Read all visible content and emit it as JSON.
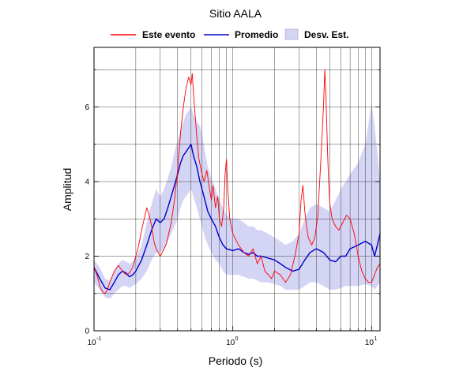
{
  "chart_data": {
    "type": "line",
    "title": "Sitio AALA",
    "xlabel": "Periodo (s)",
    "ylabel": "Amplitud",
    "x_scale": "log",
    "xlim": [
      0.1,
      11.5
    ],
    "ylim": [
      0,
      7.6
    ],
    "x_ticks": [
      {
        "value": 0.1,
        "base": "10",
        "exp": "-1"
      },
      {
        "value": 1,
        "base": "10",
        "exp": "0"
      },
      {
        "value": 10,
        "base": "10",
        "exp": "1"
      }
    ],
    "y_ticks": [
      {
        "value": 0,
        "label": "0"
      },
      {
        "value": 2,
        "label": "2"
      },
      {
        "value": 4,
        "label": "4"
      },
      {
        "value": 6,
        "label": "6"
      }
    ],
    "grid": true,
    "legend_position": "top",
    "colors": {
      "event": "#ff0000",
      "mean": "#0000cc",
      "band": "#d4d4f5"
    },
    "series": [
      {
        "name": "Este evento",
        "color": "#ff0000",
        "x": [
          0.1,
          0.105,
          0.11,
          0.115,
          0.12,
          0.125,
          0.13,
          0.14,
          0.15,
          0.16,
          0.17,
          0.18,
          0.19,
          0.2,
          0.21,
          0.22,
          0.23,
          0.24,
          0.25,
          0.26,
          0.27,
          0.28,
          0.29,
          0.3,
          0.31,
          0.32,
          0.33,
          0.34,
          0.36,
          0.38,
          0.4,
          0.42,
          0.44,
          0.46,
          0.48,
          0.5,
          0.51,
          0.52,
          0.53,
          0.55,
          0.57,
          0.6,
          0.62,
          0.65,
          0.68,
          0.7,
          0.72,
          0.75,
          0.78,
          0.8,
          0.83,
          0.86,
          0.88,
          0.9,
          0.92,
          0.95,
          1.0,
          1.1,
          1.2,
          1.3,
          1.4,
          1.5,
          1.6,
          1.7,
          1.8,
          1.9,
          2.0,
          2.2,
          2.4,
          2.6,
          2.8,
          3.0,
          3.1,
          3.2,
          3.3,
          3.4,
          3.5,
          3.7,
          3.9,
          4.1,
          4.3,
          4.5,
          4.6,
          4.7,
          4.8,
          4.9,
          5.0,
          5.2,
          5.5,
          5.8,
          6.2,
          6.6,
          7.0,
          7.5,
          8.0,
          8.5,
          9.0,
          9.5,
          10.0,
          10.5,
          11.0,
          11.5
        ],
        "values": [
          1.7,
          1.5,
          1.2,
          1.05,
          1.0,
          1.1,
          1.3,
          1.6,
          1.75,
          1.6,
          1.5,
          1.55,
          1.7,
          2.0,
          2.3,
          2.7,
          3.0,
          3.3,
          3.1,
          2.8,
          2.4,
          2.2,
          2.1,
          2.0,
          2.1,
          2.2,
          2.3,
          2.5,
          2.9,
          3.5,
          4.3,
          5.3,
          6.0,
          6.5,
          6.8,
          6.6,
          6.9,
          6.4,
          6.0,
          5.2,
          4.6,
          4.2,
          4.0,
          4.3,
          3.8,
          3.5,
          3.9,
          3.3,
          3.6,
          3.0,
          2.8,
          3.3,
          4.2,
          4.6,
          3.8,
          3.0,
          2.6,
          2.3,
          2.1,
          2.0,
          2.2,
          1.8,
          2.0,
          1.6,
          1.5,
          1.4,
          1.6,
          1.5,
          1.3,
          1.5,
          2.0,
          2.6,
          3.5,
          3.9,
          3.2,
          2.8,
          2.5,
          2.3,
          2.5,
          3.1,
          4.5,
          6.0,
          7.0,
          6.2,
          5.0,
          4.0,
          3.4,
          3.0,
          2.8,
          2.7,
          2.9,
          3.1,
          3.0,
          2.6,
          2.0,
          1.6,
          1.4,
          1.3,
          1.3,
          1.5,
          1.7,
          1.8
        ]
      },
      {
        "name": "Promedio",
        "color": "#0000cc",
        "x": [
          0.1,
          0.11,
          0.12,
          0.13,
          0.14,
          0.15,
          0.16,
          0.17,
          0.18,
          0.19,
          0.2,
          0.22,
          0.24,
          0.26,
          0.28,
          0.3,
          0.32,
          0.34,
          0.36,
          0.38,
          0.4,
          0.42,
          0.44,
          0.46,
          0.48,
          0.5,
          0.52,
          0.55,
          0.58,
          0.6,
          0.63,
          0.66,
          0.7,
          0.75,
          0.8,
          0.85,
          0.9,
          1.0,
          1.1,
          1.2,
          1.3,
          1.4,
          1.5,
          1.6,
          1.8,
          2.0,
          2.2,
          2.4,
          2.7,
          3.0,
          3.3,
          3.6,
          4.0,
          4.5,
          5.0,
          5.5,
          6.0,
          6.5,
          7.0,
          8.0,
          9.0,
          10.0,
          10.5,
          11.0,
          11.5
        ],
        "values": [
          1.7,
          1.4,
          1.15,
          1.1,
          1.3,
          1.5,
          1.6,
          1.55,
          1.45,
          1.5,
          1.6,
          1.9,
          2.3,
          2.7,
          3.0,
          2.9,
          3.0,
          3.3,
          3.6,
          3.9,
          4.2,
          4.5,
          4.7,
          4.8,
          4.9,
          5.0,
          4.7,
          4.4,
          4.0,
          3.8,
          3.5,
          3.2,
          3.0,
          2.8,
          2.5,
          2.3,
          2.2,
          2.15,
          2.2,
          2.1,
          2.05,
          2.1,
          2.0,
          2.0,
          1.95,
          1.9,
          1.8,
          1.7,
          1.6,
          1.65,
          1.9,
          2.1,
          2.2,
          2.1,
          1.9,
          1.85,
          2.0,
          2.0,
          2.2,
          2.3,
          2.4,
          2.3,
          2.0,
          2.3,
          2.6
        ]
      },
      {
        "name": "Desv. Est.",
        "color": "#d4d4f5",
        "x": [
          0.1,
          0.11,
          0.12,
          0.13,
          0.14,
          0.15,
          0.16,
          0.17,
          0.18,
          0.19,
          0.2,
          0.22,
          0.24,
          0.26,
          0.28,
          0.3,
          0.32,
          0.34,
          0.36,
          0.38,
          0.4,
          0.42,
          0.44,
          0.46,
          0.48,
          0.5,
          0.52,
          0.55,
          0.58,
          0.6,
          0.63,
          0.66,
          0.7,
          0.75,
          0.8,
          0.85,
          0.9,
          1.0,
          1.1,
          1.2,
          1.3,
          1.4,
          1.5,
          1.6,
          1.8,
          2.0,
          2.2,
          2.4,
          2.7,
          3.0,
          3.3,
          3.6,
          4.0,
          4.5,
          5.0,
          5.5,
          6.0,
          6.5,
          7.0,
          8.0,
          9.0,
          10.0,
          10.5,
          11.0,
          11.5
        ],
        "upper": [
          1.9,
          1.7,
          1.4,
          1.35,
          1.6,
          1.8,
          1.9,
          1.85,
          1.8,
          1.85,
          1.95,
          2.3,
          2.9,
          3.4,
          3.8,
          3.6,
          3.8,
          4.1,
          4.4,
          4.8,
          5.1,
          5.4,
          5.6,
          5.8,
          5.9,
          6.0,
          5.8,
          5.6,
          5.5,
          5.3,
          4.8,
          4.4,
          4.1,
          3.8,
          3.5,
          3.3,
          3.1,
          3.0,
          3.0,
          2.9,
          2.8,
          2.8,
          2.7,
          2.7,
          2.6,
          2.5,
          2.4,
          2.3,
          2.4,
          2.6,
          3.0,
          3.3,
          3.4,
          3.3,
          3.2,
          3.5,
          3.8,
          4.0,
          4.2,
          4.5,
          5.0,
          6.1,
          5.5,
          4.8,
          4.0
        ],
        "lower": [
          1.3,
          1.1,
          0.9,
          0.85,
          1.0,
          1.1,
          1.2,
          1.2,
          1.15,
          1.2,
          1.25,
          1.4,
          1.6,
          1.9,
          2.1,
          2.1,
          2.2,
          2.4,
          2.6,
          2.8,
          3.0,
          3.3,
          3.5,
          3.6,
          3.7,
          3.8,
          3.6,
          3.3,
          3.0,
          2.8,
          2.5,
          2.3,
          2.1,
          1.9,
          1.8,
          1.6,
          1.5,
          1.5,
          1.5,
          1.45,
          1.4,
          1.4,
          1.35,
          1.3,
          1.3,
          1.25,
          1.2,
          1.1,
          1.1,
          1.1,
          1.2,
          1.3,
          1.3,
          1.2,
          1.1,
          1.1,
          1.15,
          1.2,
          1.2,
          1.2,
          1.25,
          1.2,
          1.1,
          1.2,
          1.3
        ]
      }
    ]
  }
}
